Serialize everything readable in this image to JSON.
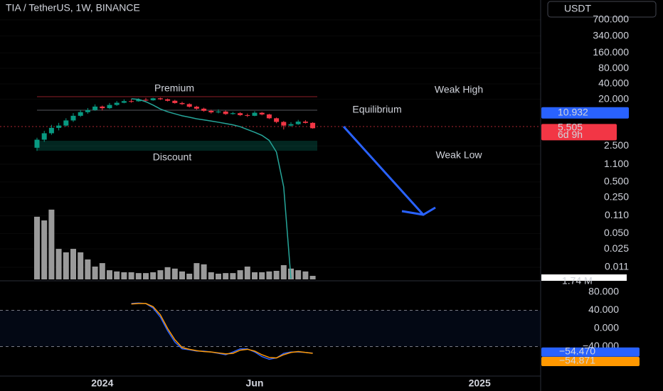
{
  "chart_data": [
    {
      "type": "candlestick",
      "title": "TIA / TetherUS, 1W, BINANCE",
      "currency_button": "USDT",
      "categories": [
        null,
        null,
        null,
        null,
        null,
        null,
        null,
        null,
        null,
        "2024",
        null,
        null,
        null,
        null,
        null,
        null,
        null,
        null,
        null,
        null,
        null,
        null,
        null,
        null,
        null,
        null,
        null,
        null,
        null,
        null,
        "Jun",
        null,
        null,
        null,
        null,
        null,
        null,
        null,
        null,
        null,
        null,
        null,
        null,
        null,
        null,
        null,
        null,
        null,
        null,
        null,
        null,
        null,
        null,
        null,
        null,
        null,
        null,
        null,
        null,
        null,
        null,
        "2025",
        null,
        null,
        null,
        null,
        null,
        null,
        null,
        null
      ],
      "open": [
        2.3,
        3.3,
        4.4,
        5.6,
        6.2,
        7.8,
        9.6,
        11.3,
        12.4,
        14.5,
        13.5,
        15.6,
        17.2,
        18.5,
        18.4,
        19.6,
        19.2,
        21.0,
        20.1,
        18.8,
        17.0,
        16.2,
        14.4,
        13.2,
        12.0,
        11.2,
        11.6,
        10.4,
        10.8,
        9.9,
        9.6,
        11.0,
        10.2,
        8.6,
        7.3,
        6.2,
        6.6,
        7.4,
        7.0,
        null,
        null,
        null,
        null,
        null,
        null,
        null,
        null,
        null,
        null,
        null,
        null,
        null,
        null,
        null,
        null,
        null,
        null,
        null,
        null,
        null,
        null,
        null,
        null,
        null,
        null,
        null,
        null,
        null,
        null,
        null
      ],
      "high": [
        3.6,
        4.9,
        6.4,
        7.0,
        8.6,
        10.8,
        12.5,
        13.6,
        16.0,
        15.2,
        17.0,
        18.6,
        20.0,
        20.2,
        21.0,
        21.3,
        21.5,
        21.6,
        20.8,
        19.6,
        18.0,
        16.8,
        15.0,
        13.8,
        12.6,
        12.8,
        12.2,
        11.4,
        11.3,
        10.6,
        11.8,
        11.4,
        10.5,
        8.9,
        7.6,
        7.2,
        8.0,
        7.9,
        7.2,
        null,
        null,
        null,
        null,
        null,
        null,
        null,
        null,
        null,
        null,
        null,
        null,
        null,
        null,
        null,
        null,
        null,
        null,
        null,
        null,
        null,
        null,
        null,
        null,
        null,
        null,
        null,
        null,
        null,
        null,
        null
      ],
      "low": [
        2.0,
        3.0,
        4.1,
        5.0,
        5.9,
        7.3,
        9.1,
        10.5,
        12.0,
        12.2,
        13.0,
        15.0,
        16.8,
        17.2,
        18.0,
        18.6,
        18.8,
        19.5,
        18.2,
        16.5,
        15.6,
        13.9,
        12.6,
        11.5,
        10.6,
        10.7,
        10.0,
        10.1,
        9.5,
        9.1,
        9.4,
        9.8,
        8.3,
        6.9,
        5.2,
        5.9,
        6.4,
        6.8,
        5.4,
        null,
        null,
        null,
        null,
        null,
        null,
        null,
        null,
        null,
        null,
        null,
        null,
        null,
        null,
        null,
        null,
        null,
        null,
        null,
        null,
        null,
        null,
        null,
        null,
        null,
        null,
        null,
        null,
        null,
        null,
        null
      ],
      "close": [
        3.3,
        4.4,
        5.6,
        6.2,
        7.8,
        9.6,
        11.3,
        12.4,
        14.5,
        13.5,
        15.6,
        17.2,
        18.5,
        18.4,
        19.6,
        19.2,
        21.0,
        20.1,
        18.8,
        17.0,
        16.2,
        14.4,
        13.2,
        12.0,
        11.2,
        11.6,
        10.4,
        10.8,
        9.9,
        9.6,
        11.0,
        10.2,
        8.6,
        7.3,
        6.2,
        6.6,
        7.4,
        7.0,
        5.505,
        null,
        null,
        null,
        null,
        null,
        null,
        null,
        null,
        null,
        null,
        null,
        null,
        null,
        null,
        null,
        null,
        null,
        null,
        null,
        null,
        null,
        null,
        null,
        null,
        null,
        null,
        null,
        null,
        null,
        null,
        null
      ],
      "up_color": "#089981",
      "down_color": "#f23645",
      "log_scale": true,
      "ylim": [
        0.0064,
        1700
      ],
      "yticks": [
        {
          "value": 700,
          "label": "700.000"
        },
        {
          "value": 340,
          "label": "340.000"
        },
        {
          "value": 160,
          "label": "160.000"
        },
        {
          "value": 80,
          "label": "80.000"
        },
        {
          "value": 40,
          "label": "40.000"
        },
        {
          "value": 20,
          "label": "20.000"
        },
        {
          "value": 2.5,
          "label": "2.500"
        },
        {
          "value": 1.1,
          "label": "1.100"
        },
        {
          "value": 0.5,
          "label": "0.500"
        },
        {
          "value": 0.25,
          "label": "0.250"
        },
        {
          "value": 0.11,
          "label": "0.110"
        },
        {
          "value": 0.05,
          "label": "0.050"
        },
        {
          "value": 0.025,
          "label": "0.025"
        },
        {
          "value": 0.011,
          "label": "0.011"
        }
      ],
      "price_tags": [
        {
          "value": 10.932,
          "color": "#2962ff"
        }
      ],
      "last_price_countdown": "6d 9h",
      "volume": {
        "values": [
          30.8,
          29,
          34.3,
          15,
          13.3,
          15,
          13.3,
          9.8,
          6.3,
          8,
          4.5,
          3.9,
          3.5,
          3.5,
          3.1,
          3.1,
          3.5,
          4.5,
          6,
          5.3,
          3.9,
          2.8,
          8,
          7.4,
          3.5,
          2.8,
          3.1,
          3.1,
          4.5,
          6.3,
          3.5,
          3.5,
          3.9,
          4.2,
          7,
          5.3,
          4.5,
          3.9,
          1.74,
          null,
          null,
          null,
          null,
          null,
          null,
          null,
          null,
          null,
          null,
          null,
          null,
          null,
          null,
          null,
          null,
          null,
          null,
          null,
          null,
          null,
          null,
          null,
          null,
          null,
          null,
          null,
          null,
          null,
          null,
          null
        ],
        "color": "#9a9a9a",
        "ylim": [
          0,
          36
        ],
        "last_value_label": "1.74 M"
      },
      "band": {
        "color": "#26a69a",
        "values": [
          null,
          null,
          null,
          null,
          null,
          null,
          null,
          null,
          null,
          null,
          null,
          null,
          null,
          20.5,
          20,
          18,
          15.5,
          13,
          11.5,
          10.5,
          9.6,
          9.0,
          8.4,
          8.0,
          7.6,
          7.2,
          6.8,
          6.4,
          5.9,
          5.2,
          4.6,
          4.0,
          3.2,
          1.9,
          0.4,
          0.0066,
          null,
          null,
          null,
          null,
          null,
          null,
          null,
          null,
          null,
          null,
          null,
          null,
          null,
          null,
          null,
          null,
          null,
          null,
          null,
          null,
          null,
          null,
          null,
          null,
          null,
          null,
          null,
          null,
          null,
          null,
          null,
          null,
          null,
          null
        ]
      },
      "zone_labels": [
        {
          "text": "Premium",
          "color": "#f23645"
        },
        {
          "text": "Equilibrium",
          "color": "#d1d4dc"
        },
        {
          "text": "Discount",
          "color": "#089981"
        },
        {
          "text": "Weak High",
          "color": "#f23645"
        },
        {
          "text": "Weak Low",
          "color": "#089981"
        }
      ]
    },
    {
      "type": "line",
      "ylim": [
        -103.5,
        103.5
      ],
      "yticks": [
        {
          "value": 80,
          "label": "80.000"
        },
        {
          "value": 40,
          "label": "40.000"
        },
        {
          "value": 0,
          "label": "0.000"
        },
        {
          "value": -40,
          "label": "−40.000"
        }
      ],
      "series": [
        {
          "color": "#2962ff",
          "last_value_label": "−54.470",
          "values": [
            null,
            null,
            null,
            null,
            null,
            null,
            null,
            null,
            null,
            null,
            null,
            null,
            null,
            55,
            56,
            55,
            45,
            25,
            -5,
            -30,
            -45,
            -47,
            -50,
            -50,
            -52,
            -55,
            -58,
            -52,
            -45,
            -45,
            -52,
            -62,
            -68,
            -65,
            -55,
            -52,
            -52,
            -53,
            -54.47,
            null,
            null,
            null,
            null,
            null,
            null,
            null,
            null,
            null,
            null,
            null,
            null,
            null,
            null,
            null,
            null,
            null,
            null,
            null,
            null,
            null,
            null,
            null,
            null,
            null,
            null,
            null,
            null,
            null,
            null,
            null
          ]
        },
        {
          "color": "#ff9800",
          "last_value_label": "−54.871",
          "values": [
            null,
            null,
            null,
            null,
            null,
            null,
            null,
            null,
            null,
            null,
            null,
            null,
            null,
            54,
            55,
            55,
            48,
            30,
            0,
            -25,
            -42,
            -46,
            -49,
            -51,
            -52,
            -54,
            -56,
            -55,
            -48,
            -46,
            -50,
            -58,
            -64,
            -65,
            -58,
            -53,
            -51,
            -53,
            -54.871,
            null,
            null,
            null,
            null,
            null,
            null,
            null,
            null,
            null,
            null,
            null,
            null,
            null,
            null,
            null,
            null,
            null,
            null,
            null,
            null,
            null,
            null,
            null,
            null,
            null,
            null,
            null,
            null,
            null,
            null,
            null
          ]
        }
      ]
    }
  ]
}
